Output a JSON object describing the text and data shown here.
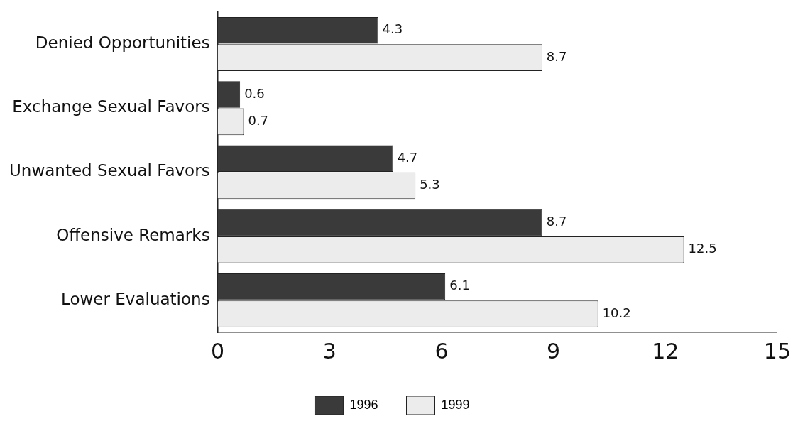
{
  "chart_data": {
    "type": "bar",
    "orientation": "horizontal",
    "categories": [
      "Denied Opportunities",
      "Exchange Sexual Favors",
      "Unwanted Sexual Favors",
      "Offensive Remarks",
      "Lower Evaluations"
    ],
    "series": [
      {
        "name": "1996",
        "color": "#3a3a3a",
        "values": [
          4.3,
          0.6,
          4.7,
          8.7,
          6.1
        ]
      },
      {
        "name": "1999",
        "color": "#ececec",
        "values": [
          8.7,
          0.7,
          5.3,
          12.5,
          10.2
        ]
      }
    ],
    "xlim": [
      0,
      15
    ],
    "xticks": [
      0,
      3,
      6,
      9,
      12,
      15
    ],
    "grid": false,
    "legend": "bottom",
    "data_labels": true
  }
}
